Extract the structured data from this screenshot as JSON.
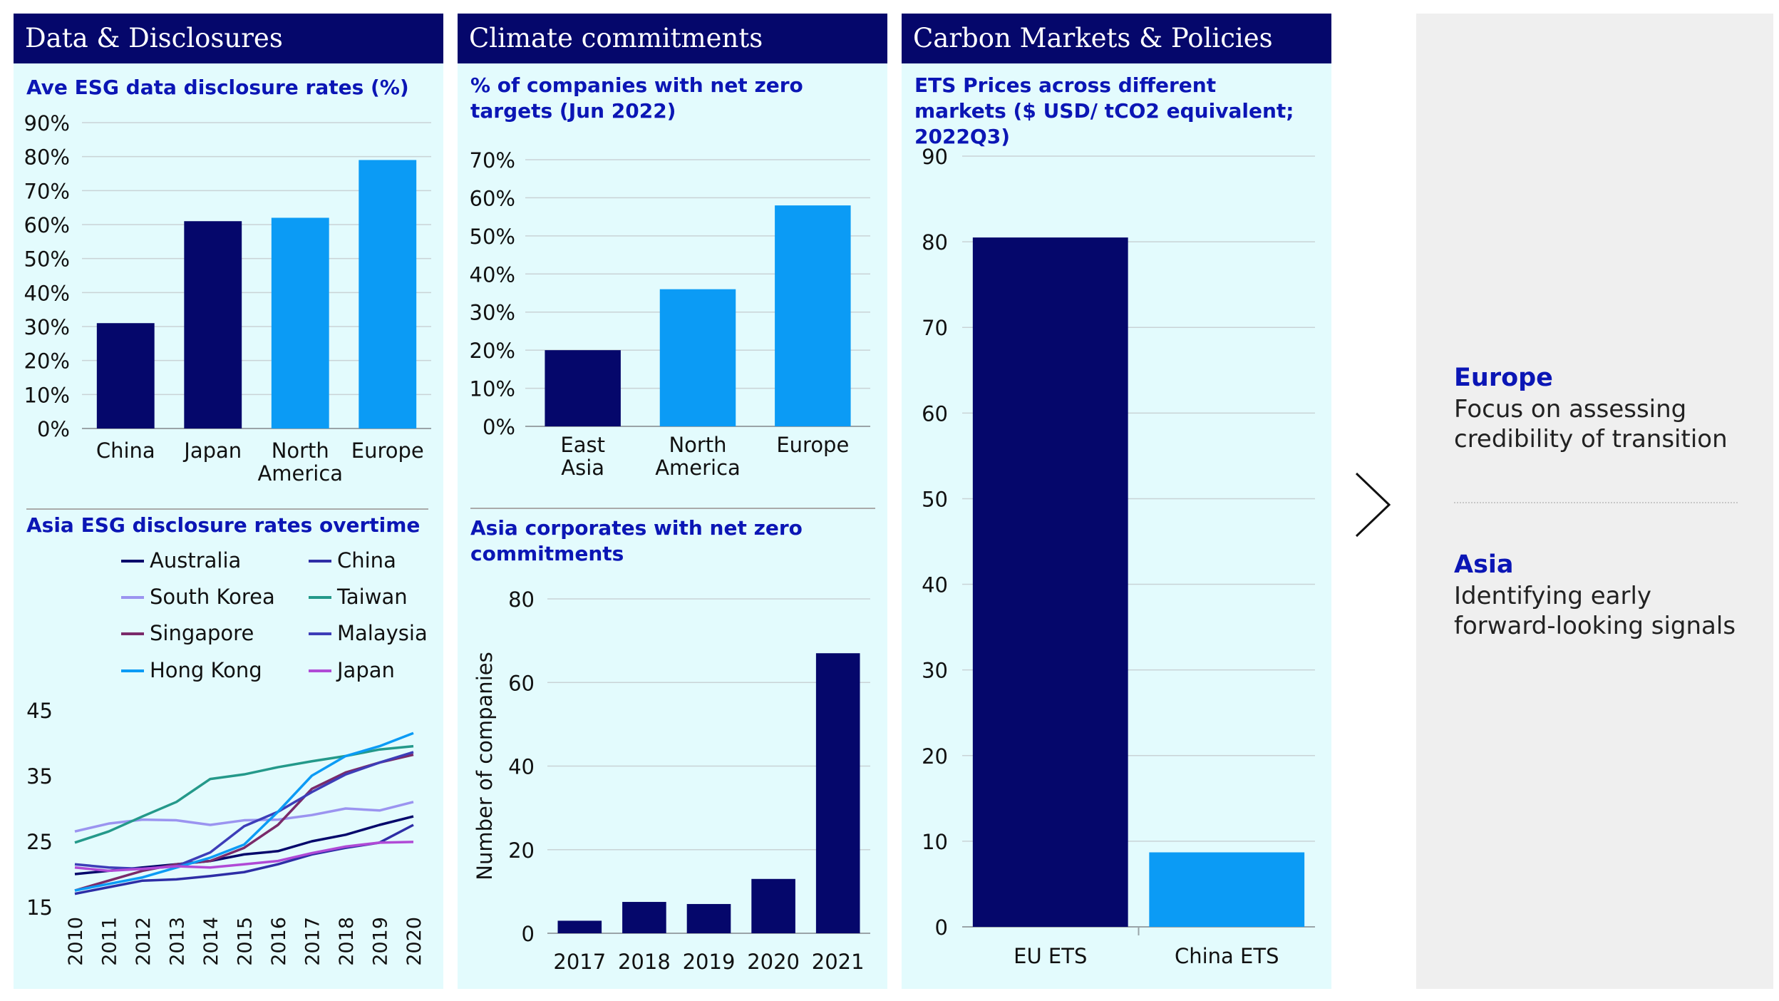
{
  "panels": {
    "data": {
      "header": "Data & Disclosures"
    },
    "climate": {
      "header": "Climate commitments"
    },
    "carbon": {
      "header": "Carbon Markets & Policies"
    }
  },
  "colors": {
    "navy": "#05076b",
    "bright": "#0b9bf5",
    "title": "#0b16b5",
    "panel_bg": "#e3fbfd"
  },
  "side": {
    "europe_title": "Europe",
    "europe_text": "Focus on assessing credibility of transition",
    "asia_title": "Asia",
    "asia_text": "Identifying early forward-looking signals",
    "chevron_icon": "chevron-right-icon"
  },
  "chart_data": [
    {
      "id": "esg_disclosure",
      "type": "bar",
      "title": "Ave ESG data disclosure rates (%)",
      "categories": [
        "China",
        "Japan",
        "North America",
        "Europe"
      ],
      "values": [
        31,
        61,
        62,
        79
      ],
      "colors": [
        "#05076b",
        "#05076b",
        "#0b9bf5",
        "#0b9bf5"
      ],
      "yticks": [
        "0%",
        "10%",
        "20%",
        "30%",
        "40%",
        "50%",
        "60%",
        "70%",
        "80%",
        "90%"
      ],
      "ylim": [
        0,
        90
      ]
    },
    {
      "id": "asia_esg",
      "type": "line",
      "title": "Asia ESG disclosure rates overtime",
      "x": [
        2010,
        2011,
        2012,
        2013,
        2014,
        2015,
        2016,
        2017,
        2018,
        2019,
        2020
      ],
      "yticks": [
        15,
        25,
        35,
        45
      ],
      "ylim": [
        15,
        45
      ],
      "series": [
        {
          "name": "Australia",
          "color": "#05076b",
          "values": [
            20,
            20.5,
            21,
            21.5,
            22,
            23,
            23.5,
            25,
            26,
            27.5,
            28.8
          ]
        },
        {
          "name": "China",
          "color": "#2e2ea6",
          "values": [
            17,
            18,
            19,
            19.2,
            19.7,
            20.3,
            21.5,
            23,
            24,
            24.8,
            27.5
          ]
        },
        {
          "name": "South Korea",
          "color": "#9b94f0",
          "values": [
            26.5,
            27.7,
            28.3,
            28.2,
            27.5,
            28.2,
            28.3,
            29,
            30,
            29.7,
            31
          ]
        },
        {
          "name": "Taiwan",
          "color": "#24998a",
          "values": [
            24.8,
            26.5,
            28.8,
            31,
            34.5,
            35.2,
            36.3,
            37.2,
            38,
            39,
            39.5
          ]
        },
        {
          "name": "Singapore",
          "color": "#7a2a6a",
          "values": [
            17.5,
            19,
            20.5,
            21.5,
            22,
            24,
            27.5,
            33,
            35.5,
            37,
            38.2
          ]
        },
        {
          "name": "Malaysia",
          "color": "#3d3db8",
          "values": [
            21.5,
            21,
            20.8,
            21.2,
            23.3,
            27.3,
            29.5,
            32.5,
            35.2,
            37,
            38.6
          ]
        },
        {
          "name": "Hong Kong",
          "color": "#0b9bf5",
          "values": [
            17.5,
            18.5,
            19.5,
            21,
            22.5,
            24.5,
            29.5,
            35,
            38,
            39.5,
            41.5
          ]
        },
        {
          "name": "Japan",
          "color": "#b04ad6",
          "values": [
            21,
            20.5,
            20.8,
            21.2,
            21,
            21.5,
            22,
            23.2,
            24.2,
            24.8,
            24.9
          ]
        }
      ]
    },
    {
      "id": "net_zero_targets",
      "type": "bar",
      "title": "% of companies with net zero targets (Jun 2022)",
      "categories": [
        "East Asia",
        "North America",
        "Europe"
      ],
      "values": [
        20,
        36,
        58
      ],
      "colors": [
        "#05076b",
        "#0b9bf5",
        "#0b9bf5"
      ],
      "yticks": [
        "0%",
        "10%",
        "20%",
        "30%",
        "40%",
        "50%",
        "60%",
        "70%"
      ],
      "ylim": [
        0,
        70
      ]
    },
    {
      "id": "net_zero_commitments",
      "type": "bar",
      "title": "Asia corporates with net zero commitments",
      "ylabel": "Number of companies",
      "categories": [
        "2017",
        "2018",
        "2019",
        "2020",
        "2021"
      ],
      "values": [
        3,
        7.5,
        7,
        13,
        67
      ],
      "colors": [
        "#05076b",
        "#05076b",
        "#05076b",
        "#05076b",
        "#05076b"
      ],
      "yticks": [
        "0",
        "20",
        "40",
        "60",
        "80"
      ],
      "ylim": [
        0,
        80
      ]
    },
    {
      "id": "ets_prices",
      "type": "bar",
      "title": "ETS Prices across different markets ($ USD/ tCO2 equivalent; 2022Q3)",
      "categories": [
        "EU ETS",
        "China ETS"
      ],
      "values": [
        80.5,
        8.7
      ],
      "colors": [
        "#05076b",
        "#0b9bf5"
      ],
      "yticks": [
        "0",
        "10",
        "20",
        "30",
        "40",
        "50",
        "60",
        "70",
        "80",
        "90"
      ],
      "ylim": [
        0,
        90
      ]
    }
  ]
}
